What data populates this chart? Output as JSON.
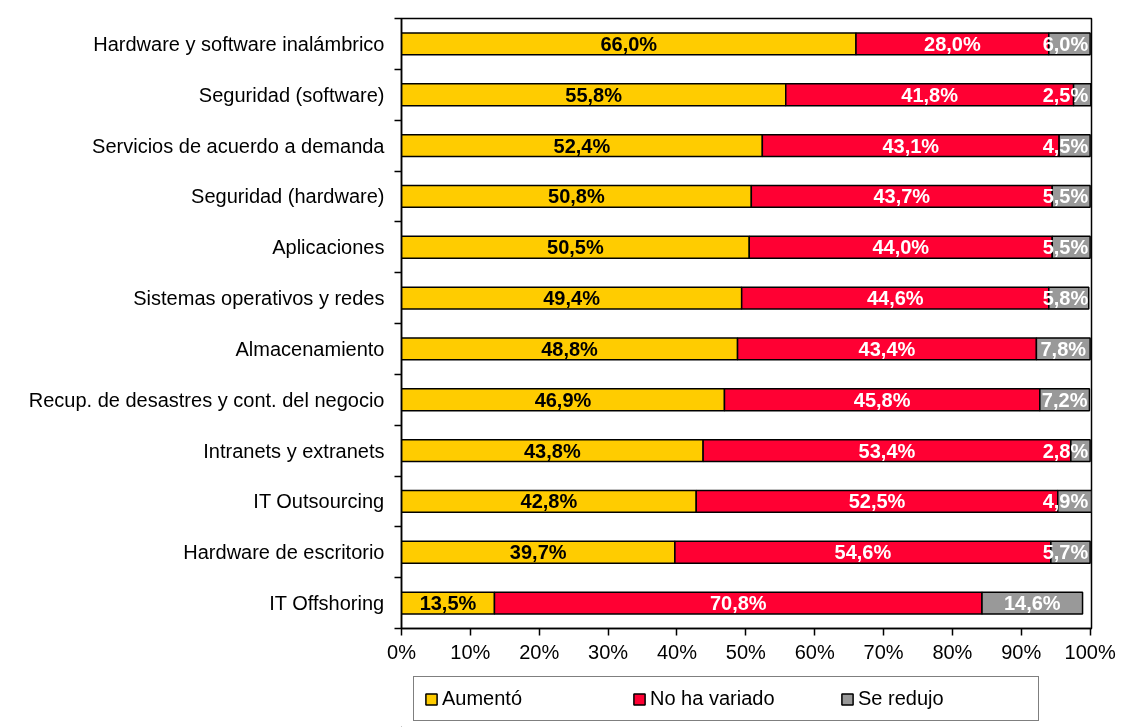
{
  "chart_data": {
    "type": "bar",
    "orientation": "horizontal",
    "stacked": true,
    "categories": [
      "Hardware y software inalámbrico",
      "Seguridad (software)",
      "Servicios de acuerdo a demanda",
      "Seguridad (hardware)",
      "Aplicaciones",
      "Sistemas operativos y redes",
      "Almacenamiento",
      "Recup. de desastres y cont. del negocio",
      "Intranets y extranets",
      "IT Outsourcing",
      "Hardware de escritorio",
      "IT Offshoring"
    ],
    "series": [
      {
        "name": "Aumentó",
        "color": "#ffcc00",
        "values": [
          66.0,
          55.8,
          52.4,
          50.8,
          50.5,
          49.4,
          48.8,
          46.9,
          43.8,
          42.8,
          39.7,
          13.5
        ],
        "value_labels": [
          "66,0%",
          "55,8%",
          "52,4%",
          "50,8%",
          "50,5%",
          "49,4%",
          "48,8%",
          "46,9%",
          "43,8%",
          "42,8%",
          "39,7%",
          "13,5%"
        ]
      },
      {
        "name": "No ha variado",
        "color": "#ff0033",
        "values": [
          28.0,
          41.8,
          43.1,
          43.7,
          44.0,
          44.6,
          43.4,
          45.8,
          53.4,
          52.5,
          54.6,
          70.8
        ],
        "value_labels": [
          "28,0%",
          "41,8%",
          "43,1%",
          "43,7%",
          "44,0%",
          "44,6%",
          "43,4%",
          "45,8%",
          "53,4%",
          "52,5%",
          "54,6%",
          "70,8%"
        ]
      },
      {
        "name": "Se redujo",
        "color": "#999999",
        "values": [
          6.0,
          2.5,
          4.5,
          5.5,
          5.5,
          5.8,
          7.8,
          7.2,
          2.8,
          4.9,
          5.7,
          14.6
        ],
        "value_labels": [
          "6,0%",
          "2,5%",
          "4,5%",
          "5,5%",
          "5,5%",
          "5,8%",
          "7,8%",
          "7,2%",
          "2,8%",
          "4,9%",
          "5,7%",
          "14,6%"
        ]
      }
    ],
    "xlim": [
      0,
      100.2
    ],
    "xticks": [
      {
        "value": 0,
        "label": "0%"
      },
      {
        "value": 10,
        "label": "10%"
      },
      {
        "value": 20,
        "label": "20%"
      },
      {
        "value": 30,
        "label": "30%"
      },
      {
        "value": 40,
        "label": "40%"
      },
      {
        "value": 50,
        "label": "50%"
      },
      {
        "value": 60,
        "label": "60%"
      },
      {
        "value": 70,
        "label": "70%"
      },
      {
        "value": 80,
        "label": "80%"
      },
      {
        "value": 90,
        "label": "90%"
      },
      {
        "value": 100,
        "label": "100%"
      }
    ],
    "legend": "bottom"
  }
}
